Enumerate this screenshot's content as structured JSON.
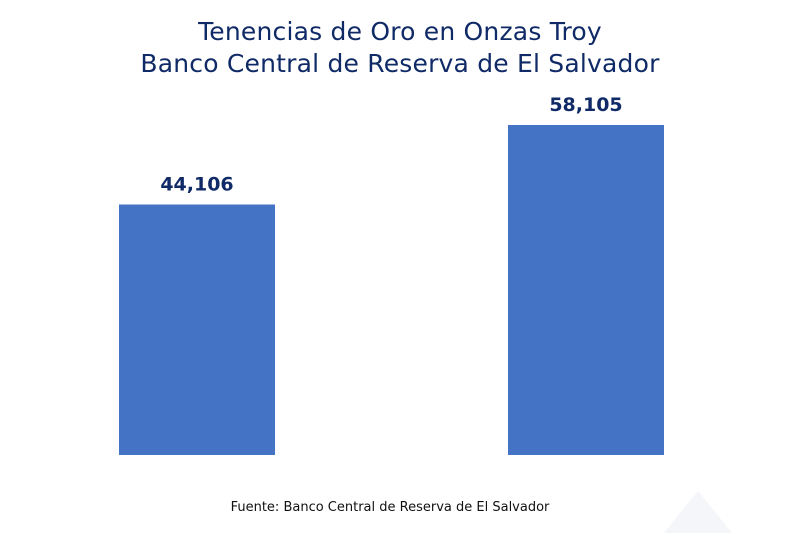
{
  "title_lines": [
    "Tenencias de Oro en Onzas Troy",
    "Banco Central de Reserva de El Salvador"
  ],
  "source": "Fuente: Banco Central de Reserva de El Salvador",
  "colors": {
    "bar": "#4472c4",
    "title": "#0f2a66",
    "value_label": "#0f2a66"
  },
  "chart_data": {
    "type": "bar",
    "title": "Tenencias de Oro en Onzas Troy Banco Central de Reserva de El Salvador",
    "categories": [
      "",
      ""
    ],
    "values": [
      44106,
      58105
    ],
    "value_labels": [
      "44,106",
      "58,105"
    ],
    "xlabel": "",
    "ylabel": "",
    "ylim": [
      0,
      58105
    ],
    "grid": false,
    "legend": "none"
  }
}
